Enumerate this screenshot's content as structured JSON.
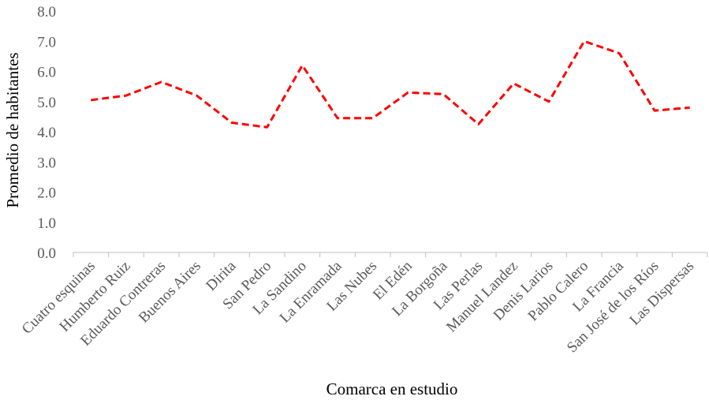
{
  "chart_data": {
    "type": "line",
    "x_label": "Comarca en estudio",
    "y_label": "Promedio de habitantes",
    "categories": [
      "Cuatro esquinas",
      "Humberto Ruiz",
      "Eduardo Contreras",
      "Buenos Aires",
      "Dirita",
      "San Pedro",
      "La Sandino",
      "La Enramada",
      "Las Nubes",
      "El Edén",
      "La Borgoña",
      "Las Perlas",
      "Manuel Landez",
      "Denis Larios",
      "Pablo Calero",
      "La Francia",
      "San José de los Ríos",
      "Las Dispersas"
    ],
    "series": [
      {
        "color": "#ff0000",
        "values": [
          5.05,
          5.2,
          5.65,
          5.2,
          4.3,
          4.15,
          6.2,
          4.45,
          4.45,
          5.3,
          5.25,
          4.25,
          5.6,
          5.0,
          7.0,
          6.6,
          4.7,
          4.8
        ]
      }
    ],
    "ylim": [
      0,
      8
    ],
    "yticks": [
      {
        "value": 0,
        "label": "0.0"
      },
      {
        "value": 1,
        "label": "1.0"
      },
      {
        "value": 2,
        "label": "2.0"
      },
      {
        "value": 3,
        "label": "3.0"
      },
      {
        "value": 4,
        "label": "4.0"
      },
      {
        "value": 5,
        "label": "5.0"
      },
      {
        "value": 6,
        "label": "6.0"
      },
      {
        "value": 7,
        "label": "7.0"
      },
      {
        "value": 8,
        "label": "8.0"
      }
    ],
    "grid": false
  }
}
